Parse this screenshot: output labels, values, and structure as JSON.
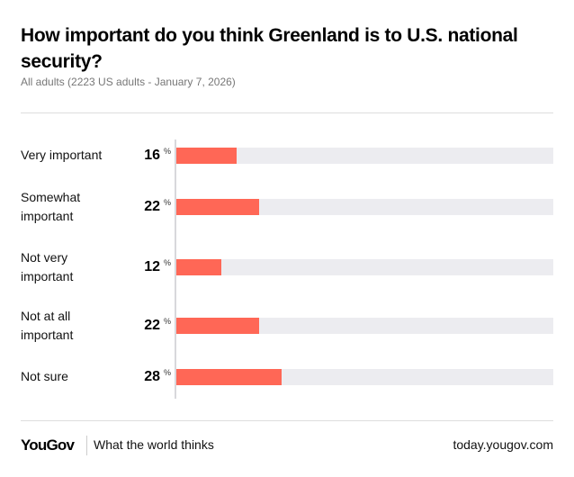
{
  "chart_data": {
    "type": "bar",
    "orientation": "horizontal",
    "title": "How important do you think Greenland is to U.S. national security?",
    "subtitle": "All adults (2223 US adults - January 7, 2026)",
    "categories": [
      "Very important",
      "Somewhat important",
      "Not very important",
      "Not at all important",
      "Not sure"
    ],
    "values": [
      16,
      22,
      12,
      22,
      28
    ],
    "unit": "%",
    "xlim": [
      0,
      100
    ],
    "bar_color": "#ff6756",
    "track_color": "#ececf0",
    "grid": false
  },
  "footer": {
    "logo": "YouGov",
    "tagline": "What the world thinks",
    "url": "today.yougov.com"
  }
}
